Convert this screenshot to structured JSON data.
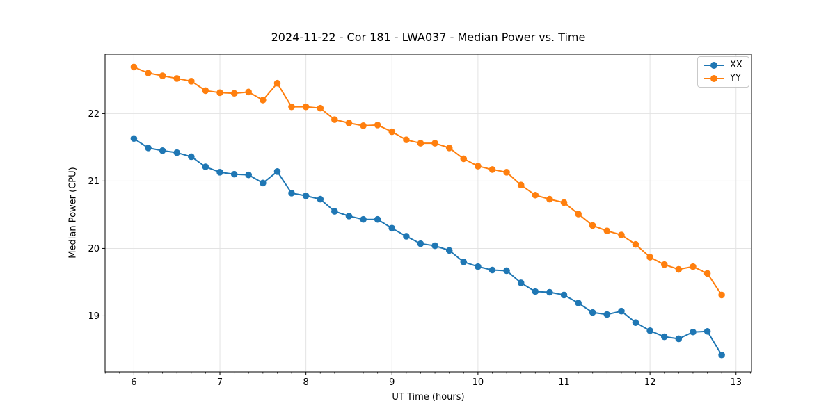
{
  "figure": {
    "title": "2024-11-22 - Cor 181 - LWA037 - Median Power vs. Time",
    "background_color": "#ffffff",
    "spine_color": "#000000",
    "tick_label_color": "#000000"
  },
  "chart_data": {
    "type": "line",
    "title": "2024-11-22 - Cor 181 - LWA037 - Median Power vs. Time",
    "xlabel": "UT Time (hours)",
    "ylabel": "Median Power (CPU)",
    "xlim": [
      5.665,
      13.18
    ],
    "ylim": [
      18.17,
      22.88
    ],
    "xticks": [
      6,
      7,
      8,
      9,
      10,
      11,
      12,
      13
    ],
    "yticks": [
      19,
      20,
      21,
      22
    ],
    "minor_xticks_per_unit": 6,
    "grid": true,
    "grid_color": "#e3e3e3",
    "legend_position": "upper right",
    "marker": "circle",
    "x": [
      6.0,
      6.167,
      6.333,
      6.5,
      6.667,
      6.833,
      7.0,
      7.167,
      7.333,
      7.5,
      7.667,
      7.833,
      8.0,
      8.167,
      8.333,
      8.5,
      8.667,
      8.833,
      9.0,
      9.167,
      9.333,
      9.5,
      9.667,
      9.833,
      10.0,
      10.167,
      10.333,
      10.5,
      10.667,
      10.833,
      11.0,
      11.167,
      11.333,
      11.5,
      11.667,
      11.833,
      12.0,
      12.167,
      12.333,
      12.5,
      12.667,
      12.833
    ],
    "series": [
      {
        "name": "XX",
        "color": "#1f77b4",
        "values": [
          21.63,
          21.49,
          21.45,
          21.42,
          21.36,
          21.21,
          21.13,
          21.1,
          21.09,
          20.97,
          21.14,
          20.82,
          20.78,
          20.73,
          20.55,
          20.48,
          20.43,
          20.43,
          20.3,
          20.18,
          20.07,
          20.04,
          19.97,
          19.8,
          19.73,
          19.68,
          19.67,
          19.49,
          19.36,
          19.35,
          19.31,
          19.19,
          19.05,
          19.02,
          19.07,
          18.9,
          18.78,
          18.69,
          18.66,
          18.76,
          18.77,
          18.42
        ]
      },
      {
        "name": "YY",
        "color": "#ff7f0e",
        "values": [
          22.69,
          22.6,
          22.56,
          22.52,
          22.48,
          22.34,
          22.31,
          22.3,
          22.32,
          22.2,
          22.45,
          22.1,
          22.1,
          22.08,
          21.91,
          21.86,
          21.82,
          21.83,
          21.73,
          21.61,
          21.56,
          21.56,
          21.49,
          21.33,
          21.22,
          21.17,
          21.13,
          20.94,
          20.79,
          20.73,
          20.68,
          20.51,
          20.34,
          20.26,
          20.2,
          20.06,
          19.87,
          19.76,
          19.69,
          19.73,
          19.63,
          19.31
        ]
      }
    ]
  }
}
